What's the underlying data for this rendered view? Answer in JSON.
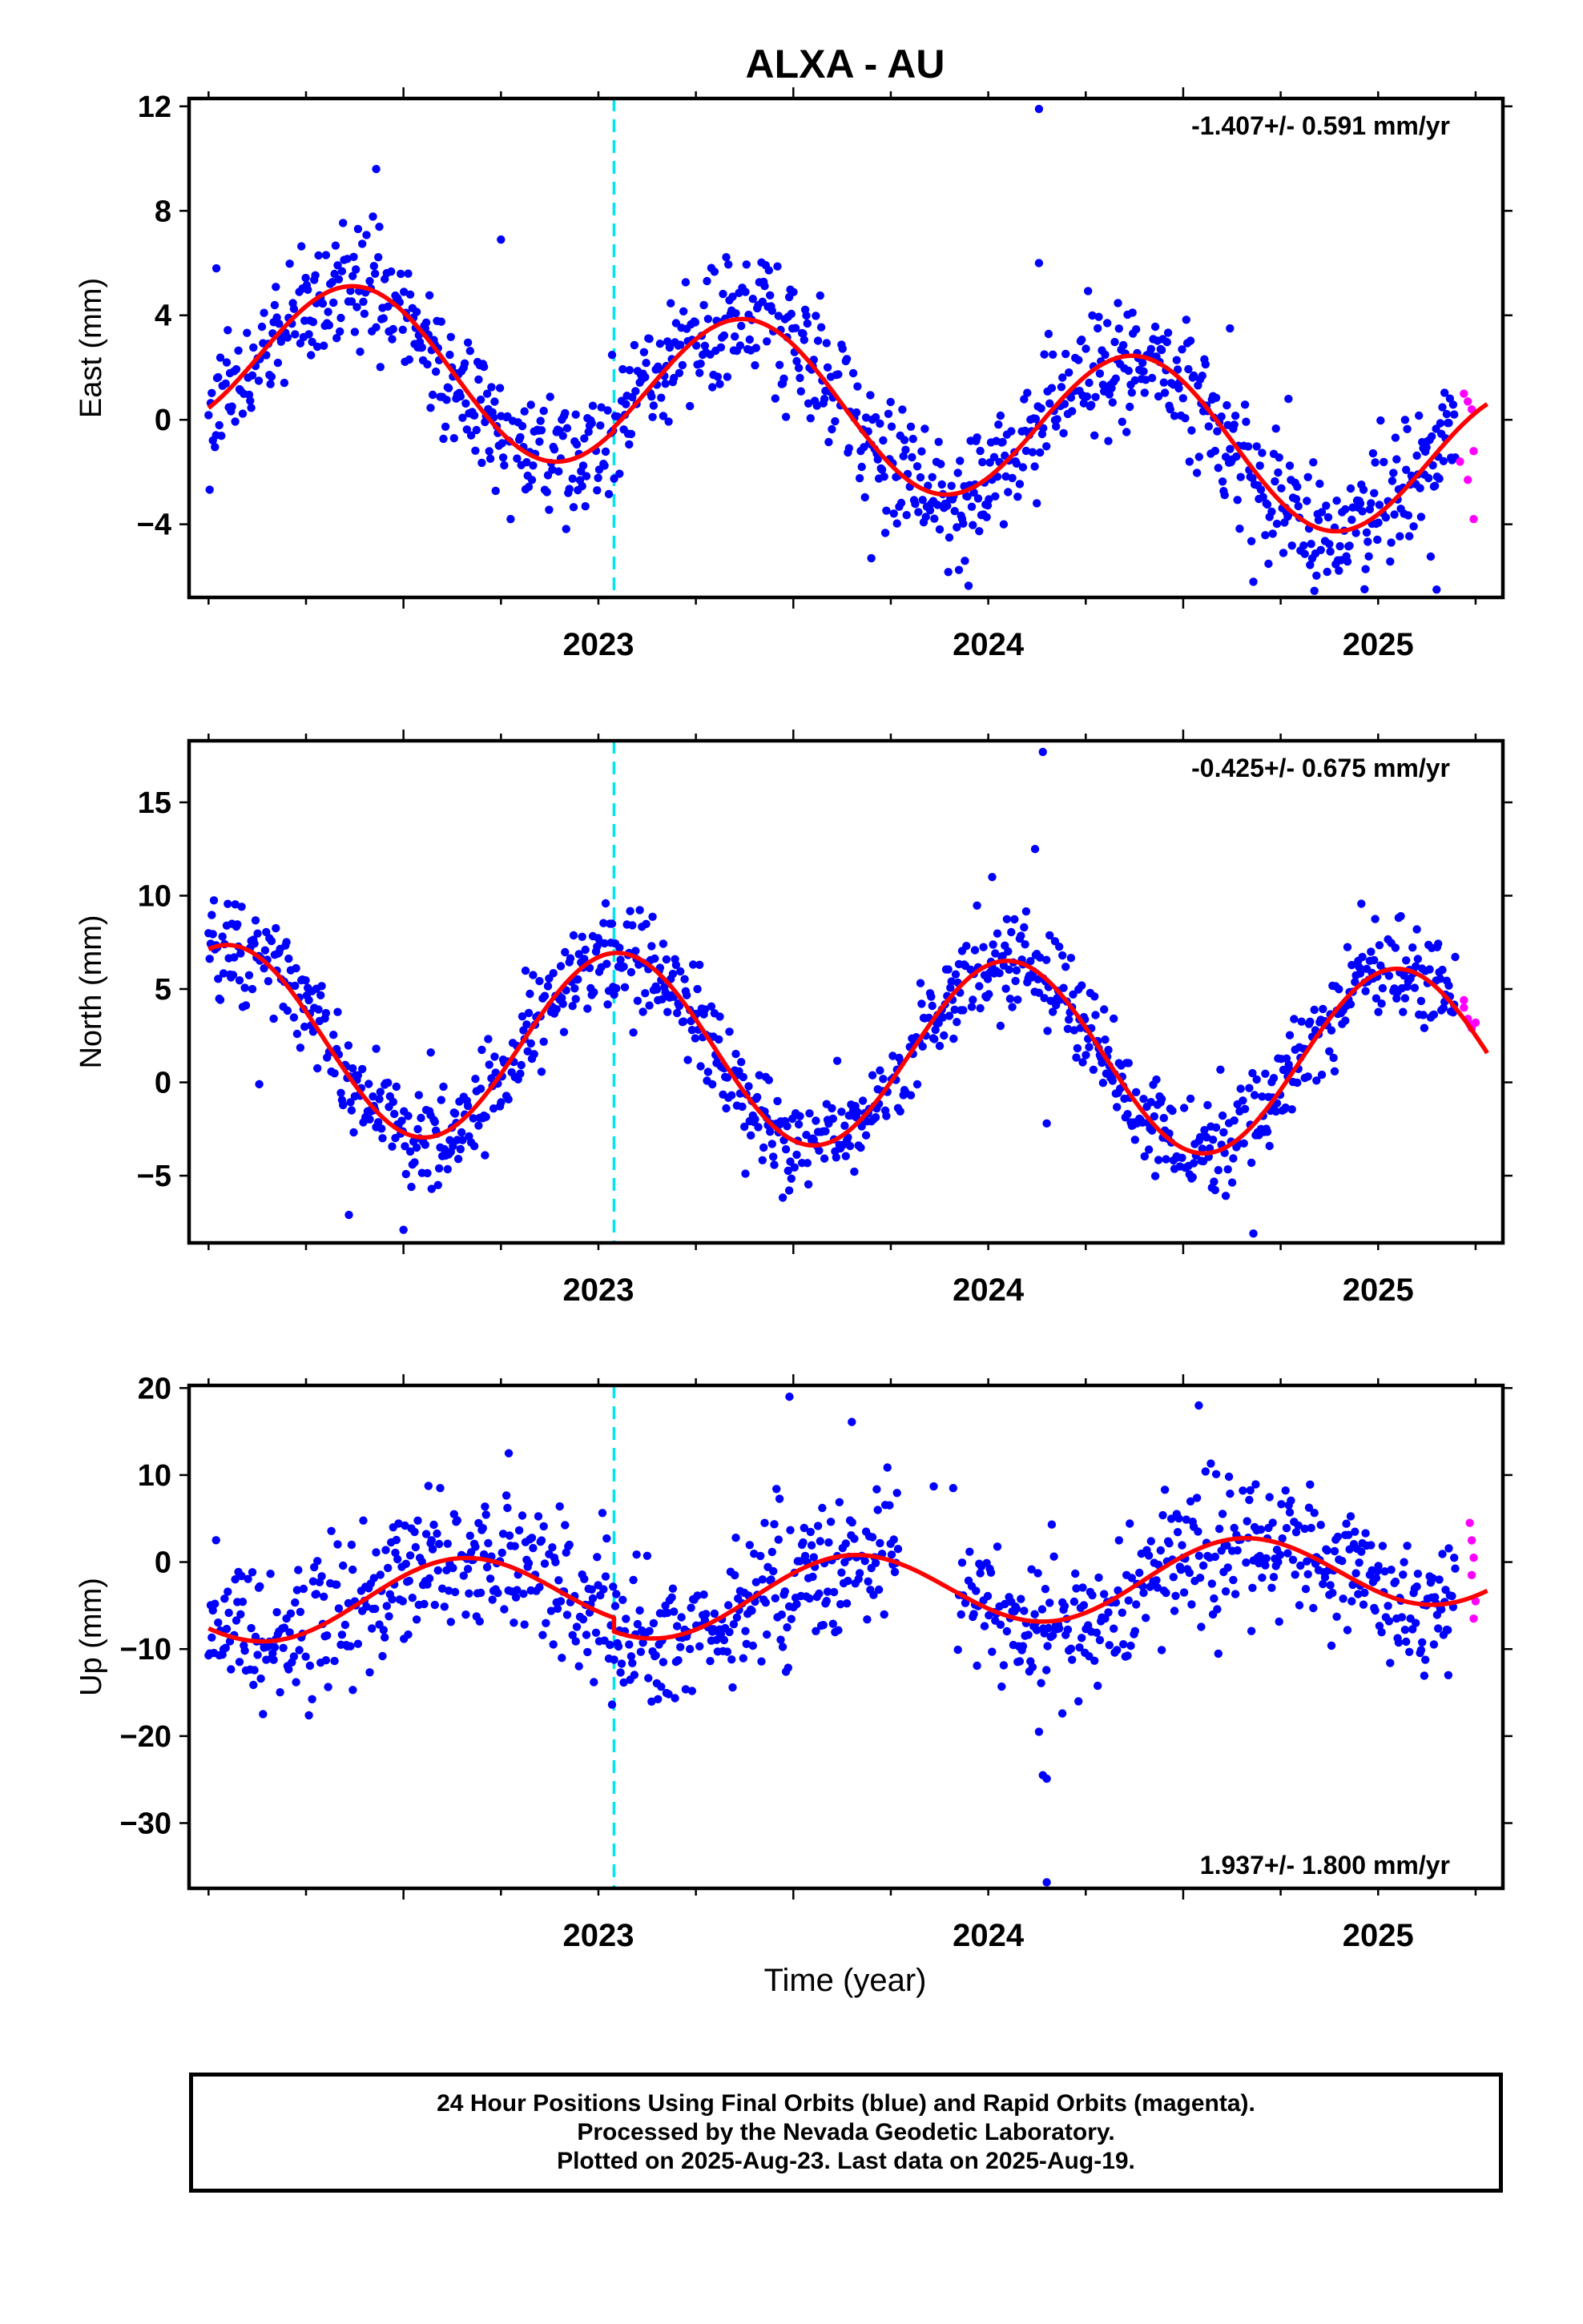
{
  "title": "ALXA - AU",
  "x_axis_label": "Time (year)",
  "footer": {
    "line1": "24 Hour Positions Using Final Orbits (blue) and Rapid Orbits (magenta).",
    "line2": "Processed by the Nevada Geodetic Laboratory.",
    "line3": "Plotted on 2025-Aug-23. Last data on 2025-Aug-19."
  },
  "colors": {
    "final_orbits": "#0000ff",
    "rapid_orbits": "#ff00ff",
    "model": "#ff0000",
    "event_marker": "#00e5ee"
  },
  "chart_data": [
    {
      "type": "scatter",
      "name": "East",
      "ylabel": "East (mm)",
      "rate_text": "-1.407+/- 0.591 mm/yr",
      "rate_position": "top-right",
      "xlim": [
        2022.45,
        2025.82
      ],
      "ylim": [
        -6.8,
        12.3
      ],
      "yticks": [
        -4,
        0,
        4,
        8,
        12
      ],
      "yticklabels": [
        "−4",
        "0",
        "4",
        "8",
        "12"
      ],
      "xticks": [
        2023,
        2024,
        2025
      ],
      "xticklabels": [
        "2023",
        "2024",
        "2025"
      ],
      "event_line_x": 2023.54,
      "model": {
        "x0": 2022.5,
        "x1": 2025.78,
        "mean": 0.39,
        "trend": -1.407,
        "amp": 3.0,
        "peak_phase": 0.88,
        "mean_step": 0.15
      },
      "final_range": [
        2022.5,
        2025.7
      ],
      "noise_sd": 1.25,
      "outliers": [
        [
          2022.52,
          5.8
        ],
        [
          2022.93,
          9.6
        ],
        [
          2023.25,
          6.9
        ],
        [
          2023.58,
          1.9
        ],
        [
          2024.2,
          -5.3
        ],
        [
          2024.63,
          11.9
        ],
        [
          2024.63,
          6.0
        ],
        [
          2024.87,
          4.1
        ],
        [
          2025.12,
          3.5
        ],
        [
          2025.27,
          0.8
        ],
        [
          2025.65,
          -6.5
        ],
        [
          2024.44,
          -5.4
        ],
        [
          2025.18,
          -6.2
        ]
      ],
      "rapid": [
        [
          2025.72,
          1.0
        ],
        [
          2025.73,
          0.7
        ],
        [
          2025.74,
          0.4
        ],
        [
          2025.71,
          -1.6
        ],
        [
          2025.745,
          -1.2
        ],
        [
          2025.73,
          -2.3
        ],
        [
          2025.745,
          -3.8
        ]
      ]
    },
    {
      "type": "scatter",
      "name": "North",
      "ylabel": "North (mm)",
      "rate_text": "-0.425+/- 0.675 mm/yr",
      "rate_position": "top-right",
      "xlim": [
        2022.45,
        2025.82
      ],
      "ylim": [
        -8.6,
        18.3
      ],
      "yticks": [
        -5,
        0,
        5,
        10,
        15
      ],
      "yticklabels": [
        "−5",
        "0",
        "5",
        "10",
        "15"
      ],
      "xticks": [
        2023,
        2024,
        2025
      ],
      "xticklabels": [
        "2023",
        "2024",
        "2025"
      ],
      "event_line_x": 2023.54,
      "model": {
        "x0": 2022.5,
        "x1": 2025.78,
        "mean": 1.65,
        "trend": -0.425,
        "amp": 5.05,
        "peak_phase": 0.55,
        "mean_step": 0.0
      },
      "final_range": [
        2022.5,
        2025.7
      ],
      "noise_sd": 1.3,
      "outliers": [
        [
          2022.63,
          -0.1
        ],
        [
          2022.93,
          1.8
        ],
        [
          2023.07,
          1.6
        ],
        [
          2024.64,
          17.7
        ],
        [
          2024.62,
          12.5
        ],
        [
          2024.65,
          -2.2
        ],
        [
          2024.51,
          11.0
        ],
        [
          2022.86,
          -7.1
        ],
        [
          2023.0,
          -7.9
        ],
        [
          2025.18,
          -8.1
        ]
      ],
      "rapid": [
        [
          2025.72,
          4.4
        ],
        [
          2025.73,
          3.4
        ],
        [
          2025.74,
          2.9
        ],
        [
          2025.735,
          3.1
        ],
        [
          2025.75,
          3.2
        ],
        [
          2025.72,
          4.0
        ]
      ]
    },
    {
      "type": "scatter",
      "name": "Up",
      "ylabel": "Up (mm)",
      "rate_text": "1.937+/- 1.800 mm/yr",
      "rate_position": "bottom-right",
      "xlim": [
        2022.45,
        2025.82
      ],
      "ylim": [
        -37.5,
        20.3
      ],
      "yticks": [
        -30,
        -20,
        -10,
        0,
        10,
        20
      ],
      "yticklabels": [
        "−30",
        "−20",
        "−10",
        "0",
        "10",
        "20"
      ],
      "xticks": [
        2023,
        2024,
        2025
      ],
      "xticklabels": [
        "2023",
        "2024",
        "2025"
      ],
      "event_line_x": 2023.54,
      "model": {
        "x0": 2022.5,
        "x1": 2025.78,
        "mean": -2.0,
        "trend": 1.937,
        "amp": 4.3,
        "peak_phase": 0.15,
        "mean_step": -1.6
      },
      "final_range": [
        2022.5,
        2025.7
      ],
      "noise_sd": 3.8,
      "gap": [
        2024.27,
        2024.42
      ],
      "outliers": [
        [
          2023.99,
          19.0
        ],
        [
          2022.87,
          -14.7
        ],
        [
          2024.64,
          -24.5
        ],
        [
          2024.65,
          -24.9
        ],
        [
          2024.65,
          -36.8
        ],
        [
          2024.63,
          -19.5
        ],
        [
          2024.15,
          16.1
        ],
        [
          2023.27,
          12.5
        ],
        [
          2025.04,
          18.0
        ],
        [
          2024.69,
          -17.4
        ],
        [
          2025.68,
          -13.0
        ],
        [
          2024.41,
          8.5
        ],
        [
          2024.36,
          8.7
        ]
      ],
      "rapid": [
        [
          2025.735,
          4.5
        ],
        [
          2025.74,
          2.5
        ],
        [
          2025.745,
          0.5
        ],
        [
          2025.74,
          -1.5
        ],
        [
          2025.75,
          -4.5
        ],
        [
          2025.745,
          -6.5
        ]
      ]
    }
  ]
}
